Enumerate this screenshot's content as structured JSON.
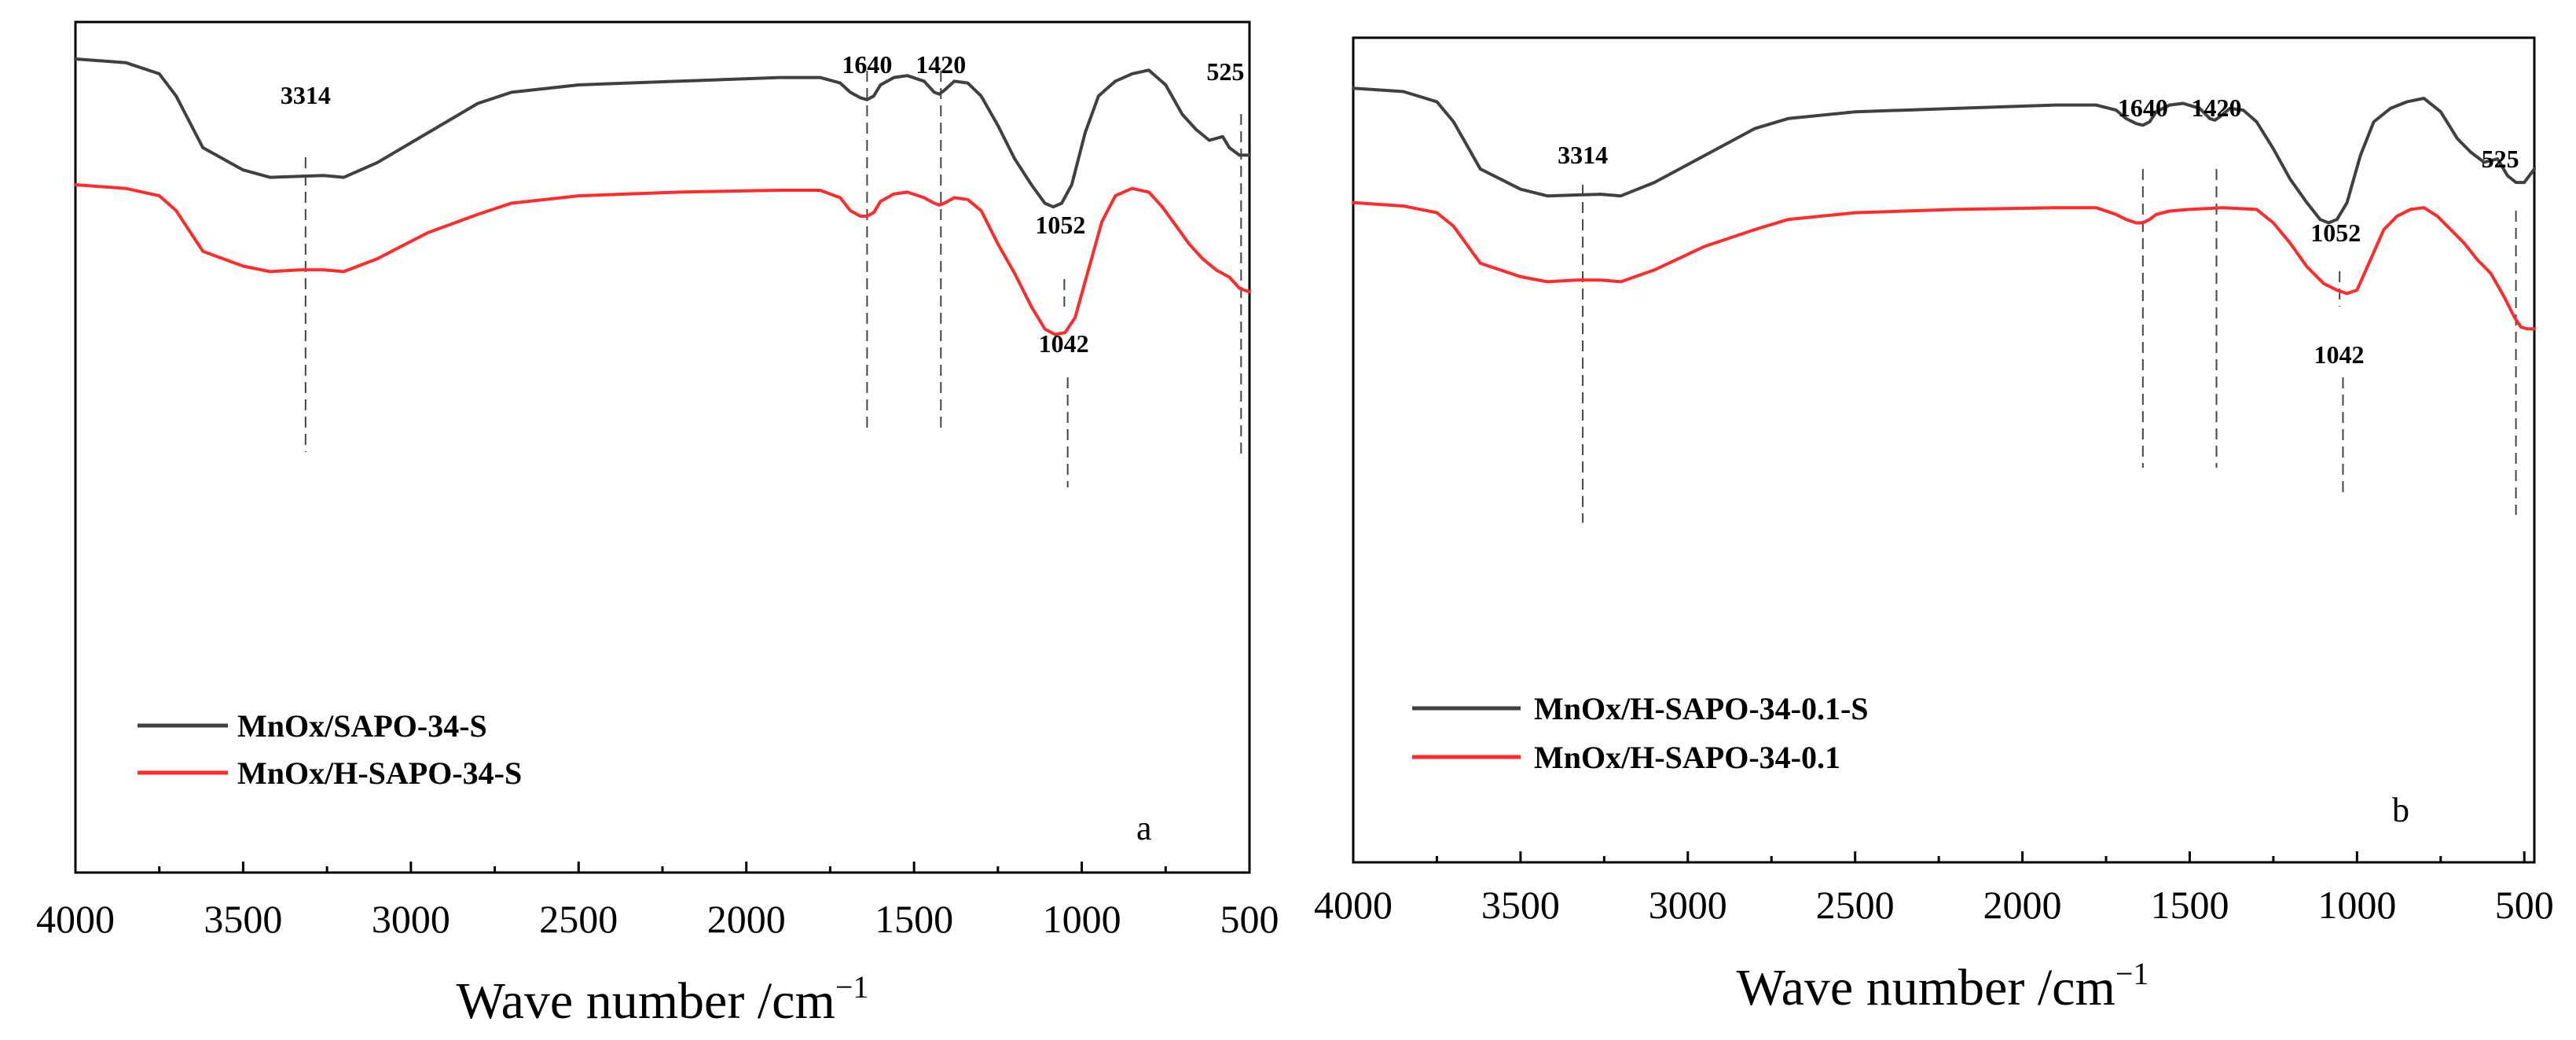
{
  "chart_data": [
    {
      "type": "line",
      "panel_label": "a",
      "xlabel": "Wave number /cm",
      "xlabel_superscript": "−1",
      "xlim": [
        4000,
        500
      ],
      "x_ticks": [
        4000,
        3500,
        3000,
        2500,
        2000,
        1500,
        1000,
        500
      ],
      "legend_position": "bottom-left",
      "series": [
        {
          "name": "MnOx/SAPO-34-S",
          "color": "#404040",
          "points": [
            [
              4000,
              90
            ],
            [
              3850,
              89
            ],
            [
              3750,
              86
            ],
            [
              3700,
              80
            ],
            [
              3620,
              66
            ],
            [
              3500,
              60
            ],
            [
              3420,
              58
            ],
            [
              3330,
              58.3
            ],
            [
              3260,
              58.5
            ],
            [
              3200,
              58
            ],
            [
              3100,
              62
            ],
            [
              2950,
              70
            ],
            [
              2800,
              78
            ],
            [
              2700,
              81
            ],
            [
              2500,
              83
            ],
            [
              2200,
              84
            ],
            [
              1900,
              85
            ],
            [
              1780,
              85
            ],
            [
              1720,
              83.5
            ],
            [
              1690,
              81
            ],
            [
              1660,
              79.5
            ],
            [
              1640,
              79
            ],
            [
              1620,
              80
            ],
            [
              1600,
              83
            ],
            [
              1560,
              85
            ],
            [
              1520,
              85.5
            ],
            [
              1470,
              84
            ],
            [
              1440,
              81
            ],
            [
              1425,
              80.5
            ],
            [
              1410,
              81.5
            ],
            [
              1380,
              84
            ],
            [
              1340,
              83.5
            ],
            [
              1300,
              80
            ],
            [
              1250,
              72
            ],
            [
              1200,
              63
            ],
            [
              1150,
              56
            ],
            [
              1110,
              51
            ],
            [
              1085,
              50
            ],
            [
              1060,
              51
            ],
            [
              1030,
              56
            ],
            [
              990,
              70
            ],
            [
              950,
              80
            ],
            [
              900,
              84
            ],
            [
              850,
              86
            ],
            [
              800,
              87
            ],
            [
              750,
              83
            ],
            [
              700,
              75
            ],
            [
              660,
              71
            ],
            [
              620,
              68
            ],
            [
              580,
              69
            ],
            [
              560,
              66
            ],
            [
              530,
              64
            ],
            [
              500,
              64
            ]
          ]
        },
        {
          "name": "MnOx/H-SAPO-34-S",
          "color": "#ff2a2a",
          "points": [
            [
              4000,
              56
            ],
            [
              3850,
              55
            ],
            [
              3750,
              53
            ],
            [
              3700,
              49
            ],
            [
              3620,
              38
            ],
            [
              3500,
              34
            ],
            [
              3420,
              32.5
            ],
            [
              3330,
              33
            ],
            [
              3260,
              33
            ],
            [
              3200,
              32.5
            ],
            [
              3100,
              36
            ],
            [
              2950,
              43
            ],
            [
              2800,
              48
            ],
            [
              2700,
              51
            ],
            [
              2500,
              53
            ],
            [
              2200,
              54
            ],
            [
              1900,
              54.5
            ],
            [
              1780,
              54.5
            ],
            [
              1720,
              52.5
            ],
            [
              1690,
              49
            ],
            [
              1660,
              47.5
            ],
            [
              1640,
              47.5
            ],
            [
              1620,
              48.5
            ],
            [
              1600,
              51.5
            ],
            [
              1560,
              53.5
            ],
            [
              1520,
              54
            ],
            [
              1470,
              52.5
            ],
            [
              1440,
              51
            ],
            [
              1425,
              50.5
            ],
            [
              1410,
              51
            ],
            [
              1380,
              52.5
            ],
            [
              1340,
              52
            ],
            [
              1300,
              49
            ],
            [
              1250,
              40
            ],
            [
              1200,
              32
            ],
            [
              1150,
              23
            ],
            [
              1110,
              17
            ],
            [
              1080,
              15.5
            ],
            [
              1050,
              16
            ],
            [
              1020,
              20
            ],
            [
              980,
              33
            ],
            [
              940,
              46
            ],
            [
              900,
              53
            ],
            [
              850,
              55
            ],
            [
              800,
              54
            ],
            [
              760,
              50
            ],
            [
              720,
              45
            ],
            [
              680,
              40
            ],
            [
              640,
              36
            ],
            [
              600,
              33
            ],
            [
              560,
              31
            ],
            [
              530,
              28
            ],
            [
              500,
              27
            ]
          ]
        }
      ],
      "annotations": [
        {
          "label": "3314",
          "x": 3314
        },
        {
          "label": "1640",
          "x": 1640
        },
        {
          "label": "1420",
          "x": 1420
        },
        {
          "label": "1052",
          "x": 1052
        },
        {
          "label": "1042",
          "x": 1042
        },
        {
          "label": "525",
          "x": 525
        }
      ]
    },
    {
      "type": "line",
      "panel_label": "b",
      "xlabel": "Wave number /cm",
      "xlabel_superscript": "−1",
      "xlim": [
        4000,
        470
      ],
      "x_ticks": [
        4000,
        3500,
        3000,
        2500,
        2000,
        1500,
        1000,
        500
      ],
      "legend_position": "top-left",
      "series": [
        {
          "name": "MnOx/H-SAPO-34-0.1-S",
          "color": "#404040",
          "points": [
            [
              4000,
              90
            ],
            [
              3850,
              89
            ],
            [
              3750,
              86
            ],
            [
              3700,
              80
            ],
            [
              3620,
              66
            ],
            [
              3500,
              60
            ],
            [
              3420,
              58
            ],
            [
              3330,
              58.3
            ],
            [
              3260,
              58.5
            ],
            [
              3200,
              58
            ],
            [
              3100,
              62
            ],
            [
              2950,
              70
            ],
            [
              2800,
              78
            ],
            [
              2700,
              81
            ],
            [
              2500,
              83
            ],
            [
              2200,
              84
            ],
            [
              1900,
              85
            ],
            [
              1780,
              85
            ],
            [
              1720,
              83.5
            ],
            [
              1690,
              81
            ],
            [
              1660,
              79.5
            ],
            [
              1640,
              79
            ],
            [
              1620,
              80
            ],
            [
              1600,
              83
            ],
            [
              1560,
              85
            ],
            [
              1520,
              85.5
            ],
            [
              1470,
              84
            ],
            [
              1440,
              81
            ],
            [
              1425,
              80.5
            ],
            [
              1410,
              81.5
            ],
            [
              1380,
              84
            ],
            [
              1340,
              83.5
            ],
            [
              1300,
              80
            ],
            [
              1250,
              72
            ],
            [
              1200,
              63
            ],
            [
              1150,
              56
            ],
            [
              1110,
              51
            ],
            [
              1085,
              50
            ],
            [
              1060,
              51
            ],
            [
              1030,
              56
            ],
            [
              990,
              70
            ],
            [
              950,
              80
            ],
            [
              900,
              84
            ],
            [
              850,
              86
            ],
            [
              800,
              87
            ],
            [
              750,
              83
            ],
            [
              700,
              75
            ],
            [
              660,
              71
            ],
            [
              620,
              68
            ],
            [
              580,
              69
            ],
            [
              550,
              64
            ],
            [
              525,
              62
            ],
            [
              500,
              62
            ],
            [
              470,
              66
            ]
          ]
        },
        {
          "name": "MnOx/H-SAPO-34-0.1",
          "color": "#ff2a2a",
          "points": [
            [
              4000,
              56
            ],
            [
              3850,
              55
            ],
            [
              3750,
              53
            ],
            [
              3700,
              49
            ],
            [
              3620,
              38
            ],
            [
              3500,
              34
            ],
            [
              3420,
              32.5
            ],
            [
              3330,
              33
            ],
            [
              3260,
              33
            ],
            [
              3200,
              32.5
            ],
            [
              3100,
              36
            ],
            [
              2950,
              43
            ],
            [
              2800,
              48
            ],
            [
              2700,
              51
            ],
            [
              2500,
              53
            ],
            [
              2200,
              54
            ],
            [
              1900,
              54.5
            ],
            [
              1780,
              54.5
            ],
            [
              1720,
              52.5
            ],
            [
              1690,
              51
            ],
            [
              1660,
              50
            ],
            [
              1640,
              50
            ],
            [
              1620,
              51
            ],
            [
              1600,
              52.5
            ],
            [
              1560,
              53.5
            ],
            [
              1500,
              54
            ],
            [
              1400,
              54.5
            ],
            [
              1300,
              54
            ],
            [
              1250,
              50
            ],
            [
              1200,
              44
            ],
            [
              1150,
              37
            ],
            [
              1100,
              32
            ],
            [
              1060,
              30
            ],
            [
              1030,
              29
            ],
            [
              1000,
              30
            ],
            [
              960,
              39
            ],
            [
              920,
              48
            ],
            [
              880,
              52
            ],
            [
              840,
              54
            ],
            [
              800,
              54.5
            ],
            [
              760,
              52
            ],
            [
              720,
              48
            ],
            [
              680,
              44
            ],
            [
              640,
              39
            ],
            [
              600,
              35
            ],
            [
              560,
              28
            ],
            [
              530,
              22
            ],
            [
              510,
              19
            ],
            [
              490,
              18.5
            ],
            [
              470,
              18.5
            ]
          ]
        }
      ],
      "annotations": [
        {
          "label": "3314",
          "x": 3314
        },
        {
          "label": "1640",
          "x": 1640
        },
        {
          "label": "1420",
          "x": 1420
        },
        {
          "label": "1052",
          "x": 1052
        },
        {
          "label": "1042",
          "x": 1042
        },
        {
          "label": "525",
          "x": 525
        }
      ]
    }
  ]
}
